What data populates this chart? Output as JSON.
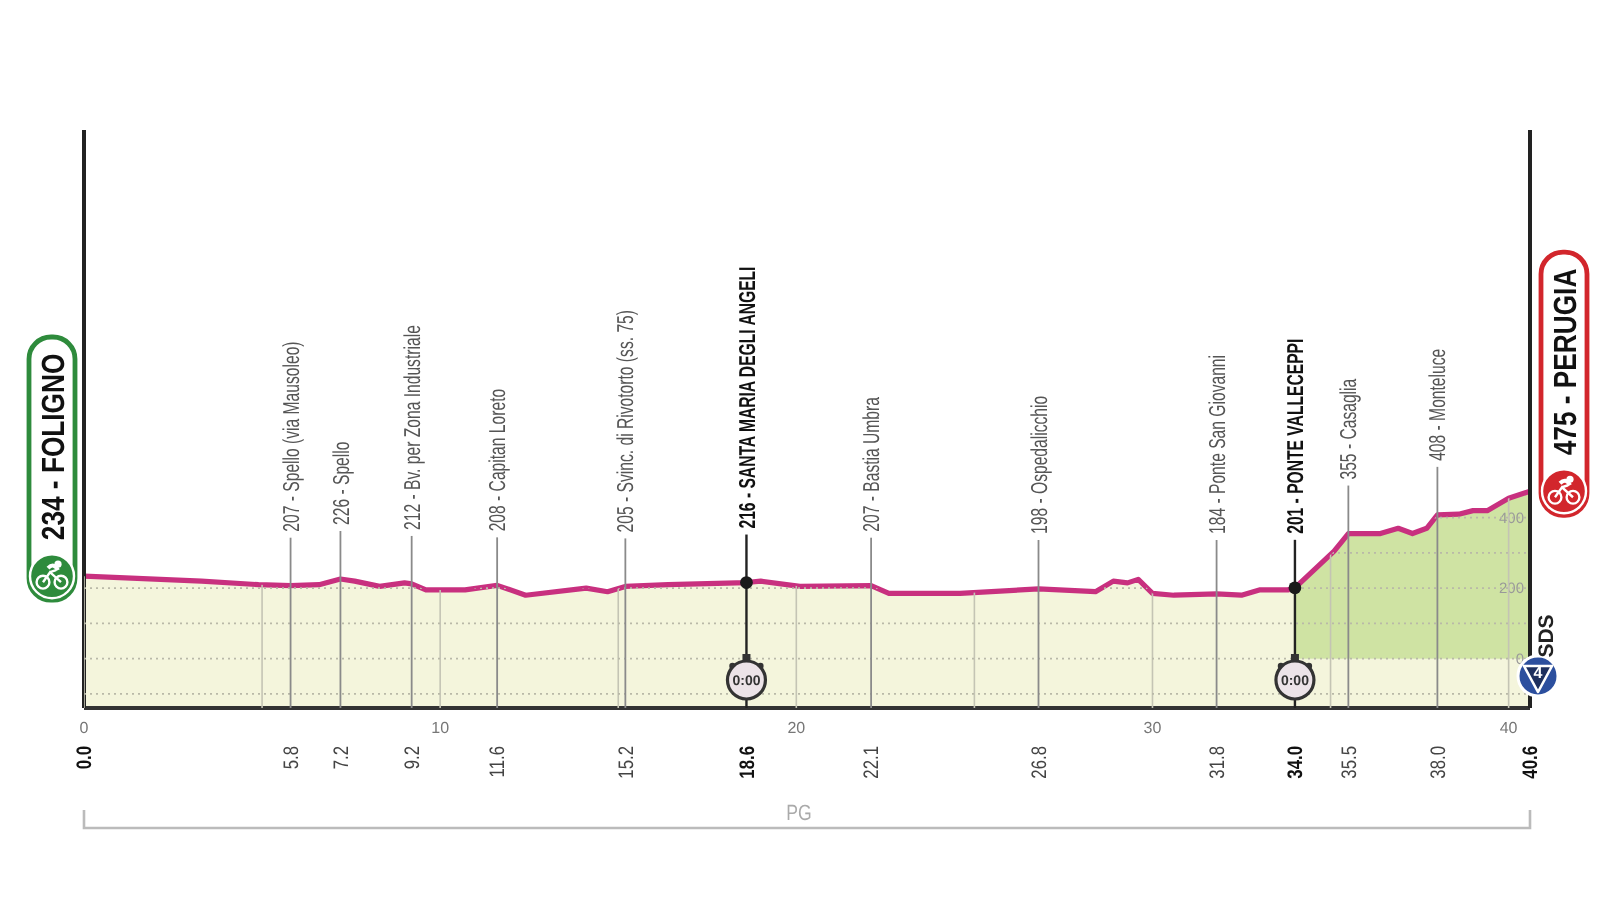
{
  "chart_data": {
    "type": "area",
    "xlim": [
      0,
      40.6
    ],
    "xticks": [
      0,
      {
        "value": 5,
        "label": null
      },
      10,
      {
        "value": 15,
        "label": null
      },
      20,
      {
        "value": 25,
        "label": null
      },
      30,
      {
        "value": 35,
        "label": null
      },
      40
    ],
    "x2lim": [
      0,
      40.6
    ],
    "x2ticks": [
      {
        "value": 0,
        "label": "0.0"
      },
      5.8,
      7.2,
      9.2,
      11.6,
      15.2,
      18.6,
      22.1,
      26.8,
      31.8,
      {
        "value": 34,
        "label": "34.0"
      },
      35.5,
      {
        "value": 38,
        "label": "38.0"
      },
      40.6
    ],
    "ylim": [
      -140,
      1500
    ],
    "yticks": [
      {
        "value": -100,
        "label": null
      },
      0,
      {
        "value": 100,
        "label": null
      },
      200,
      {
        "value": 300,
        "label": null
      },
      400
    ],
    "grid": true,
    "series": [
      {
        "type": "area",
        "color": "#f4f5dc",
        "x": [
          0,
          1.0,
          3.3,
          4.9,
          5.8,
          6.6,
          7.2,
          7.6,
          8.3,
          9.0,
          9.2,
          9.6,
          10.7,
          11.6,
          12.4,
          14.1,
          14.7,
          15.2,
          16.4,
          18.6,
          19.0,
          20.1,
          22.1,
          22.6,
          24.6,
          26.8,
          28.4,
          28.9,
          29.3,
          29.6,
          30.0,
          30.6,
          31.8,
          32.5,
          33.0,
          33.8,
          34.0
        ],
        "values": [
          234,
          230,
          220,
          210,
          207,
          210,
          226,
          220,
          205,
          215,
          212,
          195,
          195,
          208,
          180,
          200,
          190,
          205,
          210,
          216,
          220,
          205,
          207,
          185,
          185,
          198,
          190,
          220,
          215,
          225,
          185,
          180,
          184,
          180,
          195,
          195,
          201
        ]
      },
      {
        "type": "area",
        "color": "#cfe3a3",
        "x": [
          34.0,
          35.1,
          35.5,
          36.4,
          36.9,
          37.3,
          37.7,
          38.0,
          38.6,
          39.0,
          39.4,
          40.0,
          40.6
        ],
        "values": [
          201,
          305,
          355,
          355,
          370,
          355,
          370,
          408,
          410,
          420,
          420,
          455,
          475
        ]
      },
      {
        "type": "line",
        "color": "#c8307f",
        "x": [
          0,
          1.0,
          3.3,
          4.9,
          5.8,
          6.6,
          7.2,
          7.6,
          8.3,
          9.0,
          9.2,
          9.6,
          10.7,
          11.6,
          12.4,
          14.1,
          14.7,
          15.2,
          16.4,
          18.6,
          19.0,
          20.1,
          22.1,
          22.6,
          24.6,
          26.8,
          28.4,
          28.9,
          29.3,
          29.6,
          30.0,
          30.6,
          31.8,
          32.5,
          33.0,
          33.8,
          34.0,
          35.1,
          35.5,
          36.4,
          36.9,
          37.3,
          37.7,
          38.0,
          38.6,
          39.0,
          39.4,
          40.0,
          40.6
        ],
        "values": [
          234,
          230,
          220,
          210,
          207,
          210,
          226,
          220,
          205,
          215,
          212,
          195,
          195,
          208,
          180,
          200,
          190,
          205,
          210,
          216,
          220,
          205,
          207,
          185,
          185,
          198,
          190,
          220,
          215,
          225,
          185,
          180,
          184,
          180,
          195,
          195,
          201,
          305,
          355,
          355,
          370,
          355,
          370,
          408,
          410,
          420,
          420,
          455,
          475
        ]
      }
    ],
    "bands": [
      {
        "axis": "y",
        "from": -140,
        "to": 0,
        "color": "#f4f5dc"
      }
    ],
    "ref_lines": [
      {
        "axis": "x",
        "value": 5.8,
        "label": "207 - Spello (via Mausoleo)"
      },
      {
        "axis": "x",
        "value": 7.2,
        "label": "226 - Spello"
      },
      {
        "axis": "x",
        "value": 9.2,
        "label": "212 - Bv. per Zona Industriale"
      },
      {
        "axis": "x",
        "value": 11.6,
        "label": "208 - Capitan Loreto"
      },
      {
        "axis": "x",
        "value": 15.2,
        "label": "205 - Svinc. di Rivotorto (ss. 75)"
      },
      {
        "axis": "x",
        "value": 18.6,
        "label": "216 - SANTA MARIA DEGLI ANGELI"
      },
      {
        "axis": "x",
        "value": 22.1,
        "label": "207 - Bastia Umbra"
      },
      {
        "axis": "x",
        "value": 26.8,
        "label": "198 - Ospedalicchio"
      },
      {
        "axis": "x",
        "value": 31.8,
        "label": "184 - Ponte San Giovanni"
      },
      {
        "axis": "x",
        "value": 34.0,
        "label": "201 - PONTE VALLECEPPI"
      },
      {
        "axis": "x",
        "value": 35.5,
        "label": "355 - Casaglia"
      },
      {
        "axis": "x",
        "value": 38.0,
        "label": "408 - Monteluce"
      }
    ],
    "annotations": [
      {
        "text": "234 - FOLIGNO",
        "x": 0,
        "y": 234
      },
      {
        "text": "475 - PERUGIA",
        "x": 40.6,
        "y": 475
      },
      {
        "text": "0:00",
        "x": 18.6
      },
      {
        "text": "0:00",
        "x": 34.0
      },
      "4",
      "SDS",
      "PG"
    ]
  }
}
